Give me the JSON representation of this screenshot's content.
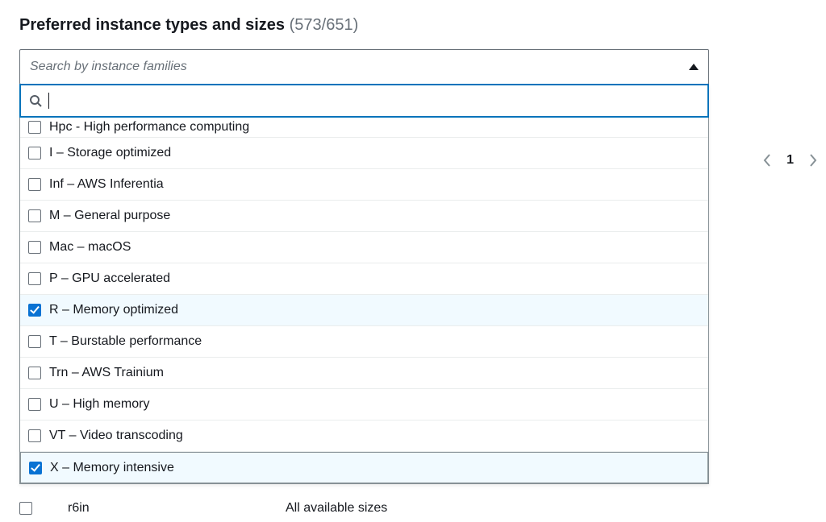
{
  "header": {
    "title": "Preferred instance types and sizes",
    "count_text": "(573/651)"
  },
  "select": {
    "placeholder": "Search by instance families"
  },
  "options": [
    {
      "label": "Hpc - High performance computing",
      "checked": false,
      "truncated_top": true
    },
    {
      "label": "I – Storage optimized",
      "checked": false
    },
    {
      "label": "Inf – AWS Inferentia",
      "checked": false
    },
    {
      "label": "M – General purpose",
      "checked": false
    },
    {
      "label": "Mac – macOS",
      "checked": false
    },
    {
      "label": "P – GPU accelerated",
      "checked": false
    },
    {
      "label": "R – Memory optimized",
      "checked": true
    },
    {
      "label": "T – Burstable performance",
      "checked": false
    },
    {
      "label": "Trn – AWS Trainium",
      "checked": false
    },
    {
      "label": "U – High memory",
      "checked": false
    },
    {
      "label": "VT – Video transcoding",
      "checked": false
    },
    {
      "label": "X – Memory intensive",
      "checked": true,
      "last_hover": true
    }
  ],
  "pagination": {
    "current": "1"
  },
  "below_row": {
    "family": "r6in",
    "sizes": "All available sizes"
  }
}
